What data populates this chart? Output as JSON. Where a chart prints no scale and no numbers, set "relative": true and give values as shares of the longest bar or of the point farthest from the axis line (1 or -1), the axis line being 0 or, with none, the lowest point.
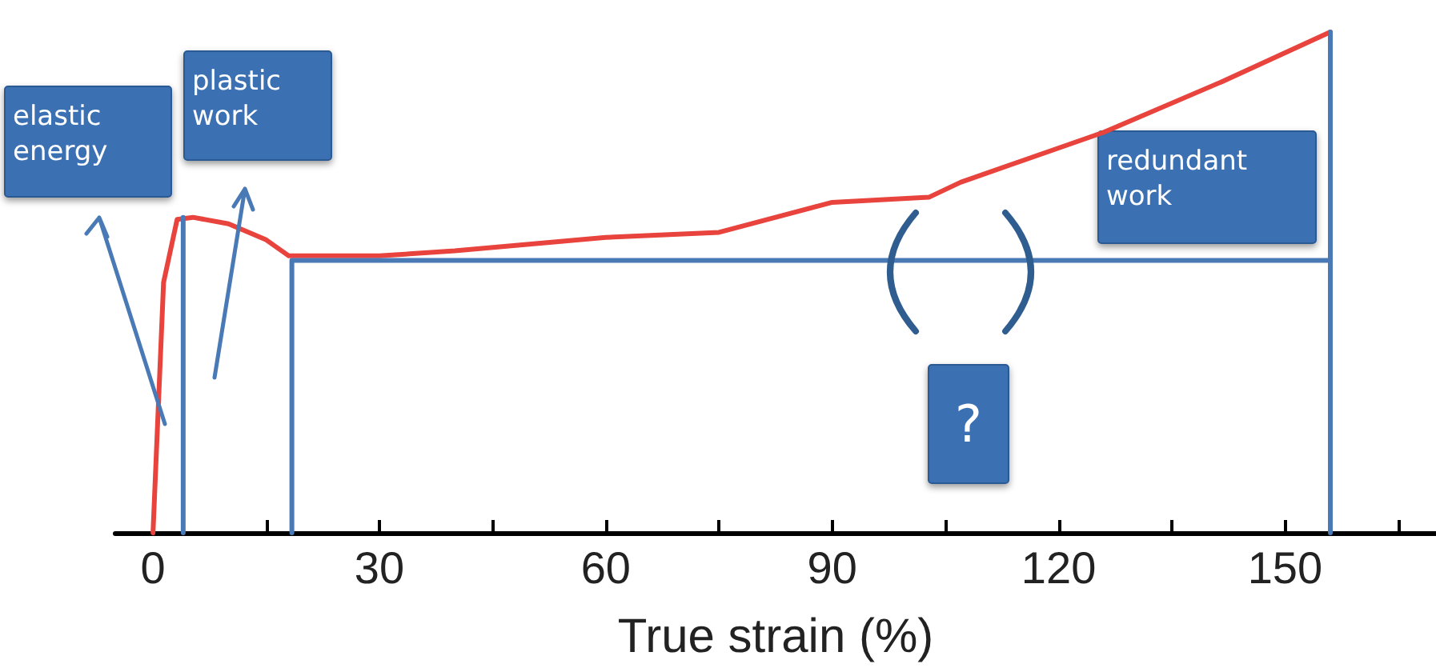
{
  "chart_data": {
    "type": "line",
    "relative": true,
    "xlabel": "True strain (%)",
    "xlim": [
      -5,
      170
    ],
    "xticks": [
      0,
      {
        "value": 15,
        "label": null
      },
      30,
      {
        "value": 45,
        "label": null
      },
      60,
      {
        "value": 75,
        "label": null
      },
      90,
      {
        "value": 105,
        "label": null
      },
      120,
      {
        "value": 135,
        "label": null
      },
      150,
      {
        "value": 165,
        "label": null
      }
    ],
    "series": [
      {
        "color": "#e8433c",
        "x": [
          0,
          1.4,
          3.2,
          5.3,
          10,
          15,
          18,
          30,
          40,
          60,
          75,
          90,
          102.8,
          107,
          126,
          141.5,
          156
        ],
        "values": [
          0,
          0.5,
          0.626,
          0.63,
          0.617,
          0.585,
          0.553,
          0.553,
          0.563,
          0.59,
          0.6,
          0.66,
          0.67,
          0.7,
          0.8,
          0.9,
          1
        ]
      },
      {
        "color": "#4a7ab5",
        "x": [
          4,
          4
        ],
        "values": [
          0,
          0.63
        ]
      },
      {
        "color": "#4a7ab5",
        "x": [
          18.4,
          18.4,
          156
        ],
        "values": [
          0,
          0.544,
          0.544
        ]
      },
      {
        "color": "#4a7ab5",
        "x": [
          156,
          156
        ],
        "values": [
          0,
          1
        ]
      }
    ],
    "annotations": [
      "elastic energy",
      "plastic work",
      "redundant work",
      "?"
    ],
    "grid": false,
    "marker": "none",
    "line_style": "solid"
  }
}
